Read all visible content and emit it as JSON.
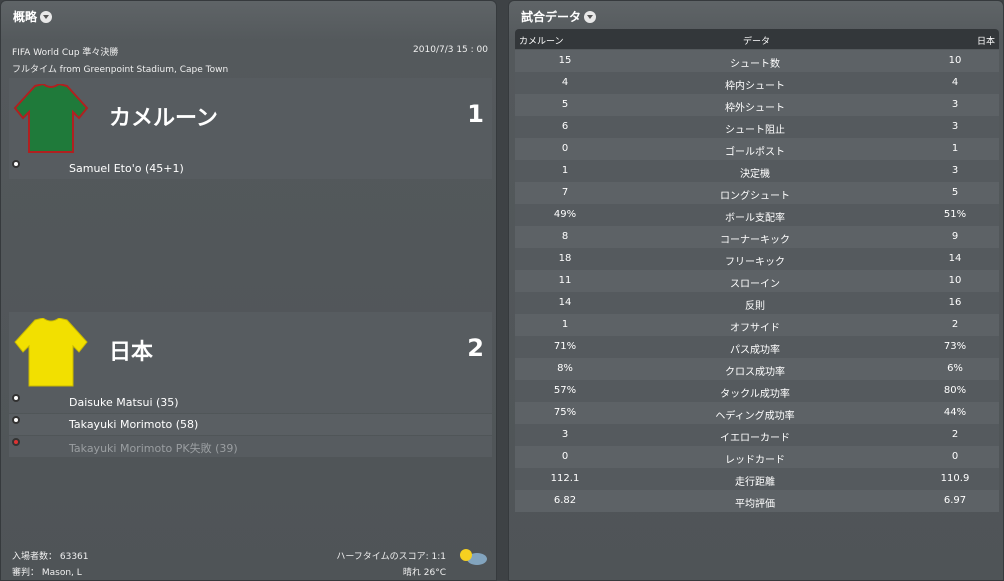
{
  "summary": {
    "title": "概略",
    "competition": "FIFA World Cup 準々決勝",
    "datetime": "2010/7/3 15 : 00",
    "venue": "フルタイム from Greenpoint Stadium, Cape Town",
    "home": {
      "name": "カメルーン",
      "score": "1",
      "shirt_color": "#1f7a3a",
      "trim_color": "#b02020",
      "scorers": [
        {
          "text": "Samuel Eto'o (45+1)",
          "type": "goal"
        }
      ]
    },
    "away": {
      "name": "日本",
      "score": "2",
      "shirt_color": "#f2e000",
      "scorers": [
        {
          "text": "Daisuke Matsui (35)",
          "type": "goal"
        },
        {
          "text": "Takayuki Morimoto (58)",
          "type": "goal"
        },
        {
          "text": "Takayuki Morimoto PK失敗 (39)",
          "type": "missed-penalty"
        }
      ]
    },
    "attendance": "入場者数： 63361",
    "referee": "審判： Mason, L",
    "halftime": "ハーフタイムのスコア: 1:1",
    "weather": "晴れ 26°C",
    "weather_icon": "sun-cloud-icon"
  },
  "stats": {
    "title": "試合データ",
    "headers": [
      "カメルーン",
      "データ",
      "日本"
    ],
    "rows": [
      [
        "15",
        "シュート数",
        "10"
      ],
      [
        "4",
        "枠内シュート",
        "4"
      ],
      [
        "5",
        "枠外シュート",
        "3"
      ],
      [
        "6",
        "シュート阻止",
        "3"
      ],
      [
        "0",
        "ゴールポスト",
        "1"
      ],
      [
        "1",
        "決定機",
        "3"
      ],
      [
        "7",
        "ロングシュート",
        "5"
      ],
      [
        "49%",
        "ボール支配率",
        "51%"
      ],
      [
        "8",
        "コーナーキック",
        "9"
      ],
      [
        "18",
        "フリーキック",
        "14"
      ],
      [
        "11",
        "スローイン",
        "10"
      ],
      [
        "14",
        "反則",
        "16"
      ],
      [
        "1",
        "オフサイド",
        "2"
      ],
      [
        "71%",
        "パス成功率",
        "73%"
      ],
      [
        "8%",
        "クロス成功率",
        "6%"
      ],
      [
        "57%",
        "タックル成功率",
        "80%"
      ],
      [
        "75%",
        "ヘディング成功率",
        "44%"
      ],
      [
        "3",
        "イエローカード",
        "2"
      ],
      [
        "0",
        "レッドカード",
        "0"
      ],
      [
        "112.1",
        "走行距離",
        "110.9"
      ],
      [
        "6.82",
        "平均評価",
        "6.97"
      ]
    ]
  }
}
